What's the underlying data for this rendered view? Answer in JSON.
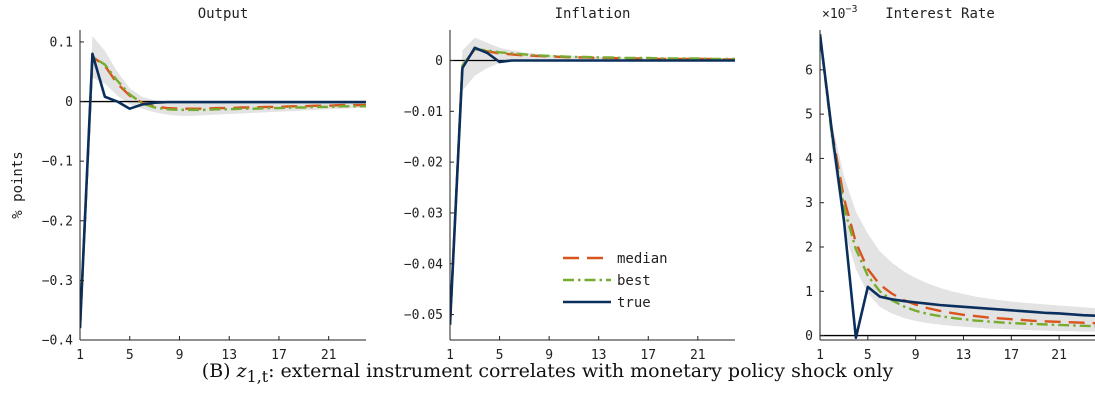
{
  "caption": {
    "label": "(B)",
    "var": "z",
    "sub": "1,t",
    "text": ": external instrument correlates with monetary policy shock only"
  },
  "colors": {
    "median": "#d9541e",
    "best": "#77ac30",
    "true": "#0b2f5c",
    "band": "#e3e3e3"
  },
  "chart_data": [
    {
      "type": "line",
      "title": "Output",
      "ylabel": "% points",
      "xlim": [
        1,
        24
      ],
      "ylim": [
        -0.4,
        0.12
      ],
      "xticks": [
        1,
        5,
        9,
        13,
        17,
        21
      ],
      "yticks": [
        0.1,
        0,
        -0.1,
        -0.2,
        -0.3,
        -0.4
      ],
      "yticklabels": [
        "0.1",
        "0",
        "−0.1",
        "−0.2",
        "−0.3",
        "−0.4"
      ],
      "x": [
        1,
        2,
        3,
        4,
        5,
        6,
        7,
        8,
        9,
        10,
        11,
        12,
        13,
        14,
        15,
        16,
        17,
        18,
        19,
        20,
        21,
        22,
        23,
        24
      ],
      "band": {
        "upper": [
          -0.38,
          0.11,
          0.085,
          0.05,
          0.022,
          0.008,
          0.002,
          0.0,
          -0.002,
          -0.002,
          -0.002,
          -0.002,
          -0.002,
          -0.002,
          -0.002,
          -0.002,
          -0.001,
          -0.001,
          -0.001,
          -0.001,
          -0.001,
          -0.001,
          -0.001,
          -0.001
        ],
        "lower": [
          -0.38,
          0.04,
          0.03,
          0.01,
          -0.005,
          -0.012,
          -0.018,
          -0.022,
          -0.024,
          -0.024,
          -0.023,
          -0.022,
          -0.021,
          -0.02,
          -0.019,
          -0.018,
          -0.017,
          -0.016,
          -0.015,
          -0.014,
          -0.013,
          -0.012,
          -0.011,
          -0.01
        ]
      },
      "series": [
        {
          "name": "median",
          "values": [
            -0.38,
            0.075,
            0.06,
            0.03,
            0.01,
            -0.002,
            -0.008,
            -0.011,
            -0.012,
            -0.012,
            -0.012,
            -0.011,
            -0.011,
            -0.01,
            -0.01,
            -0.009,
            -0.009,
            -0.008,
            -0.008,
            -0.007,
            -0.007,
            -0.006,
            -0.006,
            -0.006
          ]
        },
        {
          "name": "best",
          "values": [
            -0.38,
            0.075,
            0.062,
            0.035,
            0.012,
            -0.003,
            -0.01,
            -0.013,
            -0.014,
            -0.014,
            -0.014,
            -0.013,
            -0.013,
            -0.012,
            -0.012,
            -0.011,
            -0.011,
            -0.01,
            -0.01,
            -0.009,
            -0.009,
            -0.008,
            -0.008,
            -0.008
          ]
        },
        {
          "name": "true",
          "values": [
            -0.38,
            0.08,
            0.008,
            0.0,
            -0.012,
            -0.005,
            -0.002,
            -0.001,
            -0.001,
            -0.001,
            -0.001,
            -0.001,
            -0.001,
            -0.001,
            -0.001,
            -0.001,
            -0.001,
            -0.001,
            -0.001,
            -0.001,
            -0.001,
            -0.001,
            -0.001,
            -0.001
          ]
        }
      ]
    },
    {
      "type": "line",
      "title": "Inflation",
      "xlim": [
        1,
        24
      ],
      "ylim": [
        -0.055,
        0.006
      ],
      "xticks": [
        1,
        5,
        9,
        13,
        17,
        21
      ],
      "yticks": [
        0,
        -0.01,
        -0.02,
        -0.03,
        -0.04,
        -0.05
      ],
      "yticklabels": [
        "0",
        "−0.01",
        "−0.02",
        "−0.03",
        "−0.04",
        "−0.05"
      ],
      "legend": {
        "position": "bottom-right",
        "entries": [
          "median",
          "best",
          "true"
        ]
      },
      "x": [
        1,
        2,
        3,
        4,
        5,
        6,
        7,
        8,
        9,
        10,
        11,
        12,
        13,
        14,
        15,
        16,
        17,
        18,
        19,
        20,
        21,
        22,
        23,
        24
      ],
      "band": {
        "upper": [
          -0.052,
          0.002,
          0.0045,
          0.0035,
          0.0025,
          0.002,
          0.0016,
          0.0013,
          0.0011,
          0.001,
          0.0009,
          0.0008,
          0.0007,
          0.0006,
          0.0006,
          0.0005,
          0.0005,
          0.0004,
          0.0004,
          0.0004,
          0.0003,
          0.0003,
          0.0003,
          0.0003
        ],
        "lower": [
          -0.052,
          -0.006,
          -0.003,
          -0.0015,
          -0.0005,
          0.0,
          0.0,
          0.0,
          0.0,
          0.0,
          0.0,
          0.0,
          0.0,
          0.0,
          0.0,
          0.0,
          0.0,
          0.0,
          0.0,
          0.0,
          0.0,
          0.0,
          0.0,
          0.0
        ]
      },
      "series": [
        {
          "name": "median",
          "values": [
            -0.052,
            -0.001,
            0.0022,
            0.0018,
            0.0014,
            0.0012,
            0.001,
            0.0009,
            0.0008,
            0.0007,
            0.0006,
            0.0006,
            0.0005,
            0.0005,
            0.0004,
            0.0004,
            0.0004,
            0.0003,
            0.0003,
            0.0003,
            0.0003,
            0.0003,
            0.0002,
            0.0002
          ]
        },
        {
          "name": "best",
          "values": [
            -0.052,
            -0.001,
            0.0022,
            0.002,
            0.0016,
            0.0014,
            0.0012,
            0.001,
            0.0009,
            0.0008,
            0.0007,
            0.0007,
            0.0006,
            0.0006,
            0.0005,
            0.0005,
            0.0005,
            0.0004,
            0.0004,
            0.0004,
            0.0004,
            0.0003,
            0.0003,
            0.0003
          ]
        },
        {
          "name": "true",
          "values": [
            -0.052,
            -0.0015,
            0.0025,
            0.0015,
            -0.0003,
            0.0,
            0.0,
            0.0,
            0.0,
            0.0,
            0.0,
            0.0,
            0.0,
            0.0,
            0.0,
            0.0,
            0.0,
            0.0,
            0.0,
            0.0,
            0.0,
            0.0,
            0.0,
            0.0
          ]
        }
      ]
    },
    {
      "type": "line",
      "title": "Interest Rate",
      "scale_label": "×10",
      "scale_exp": "−3",
      "xlim": [
        1,
        24
      ],
      "ylim": [
        -0.1,
        6.9
      ],
      "xticks": [
        1,
        5,
        9,
        13,
        17,
        21
      ],
      "yticks": [
        0,
        1,
        2,
        3,
        4,
        5,
        6
      ],
      "yticklabels": [
        "0",
        "1",
        "2",
        "3",
        "4",
        "5",
        "6"
      ],
      "x": [
        1,
        2,
        3,
        4,
        5,
        6,
        7,
        8,
        9,
        10,
        11,
        12,
        13,
        14,
        15,
        16,
        17,
        18,
        19,
        20,
        21,
        22,
        23,
        24
      ],
      "band": {
        "upper": [
          6.8,
          4.8,
          3.6,
          2.8,
          2.3,
          1.9,
          1.65,
          1.45,
          1.3,
          1.18,
          1.08,
          1.0,
          0.94,
          0.88,
          0.84,
          0.8,
          0.77,
          0.74,
          0.72,
          0.7,
          0.68,
          0.66,
          0.64,
          0.62
        ],
        "lower": [
          6.8,
          4.2,
          2.4,
          1.5,
          0.95,
          0.65,
          0.5,
          0.4,
          0.33,
          0.28,
          0.25,
          0.22,
          0.2,
          0.18,
          0.16,
          0.15,
          0.14,
          0.13,
          0.12,
          0.11,
          0.1,
          0.1,
          0.09,
          0.09
        ]
      },
      "series": [
        {
          "name": "median",
          "values": [
            6.8,
            4.6,
            3.1,
            2.1,
            1.5,
            1.15,
            0.95,
            0.8,
            0.7,
            0.62,
            0.56,
            0.51,
            0.47,
            0.44,
            0.41,
            0.39,
            0.37,
            0.35,
            0.33,
            0.32,
            0.31,
            0.3,
            0.29,
            0.28
          ]
        },
        {
          "name": "best",
          "values": [
            6.8,
            4.5,
            2.9,
            1.95,
            1.35,
            1.0,
            0.8,
            0.66,
            0.56,
            0.49,
            0.44,
            0.4,
            0.37,
            0.34,
            0.32,
            0.3,
            0.28,
            0.27,
            0.26,
            0.25,
            0.24,
            0.23,
            0.22,
            0.21
          ]
        },
        {
          "name": "true",
          "values": [
            6.8,
            4.6,
            2.6,
            -0.05,
            1.1,
            0.88,
            0.82,
            0.78,
            0.75,
            0.72,
            0.69,
            0.67,
            0.65,
            0.63,
            0.61,
            0.59,
            0.57,
            0.55,
            0.53,
            0.51,
            0.5,
            0.48,
            0.46,
            0.45
          ]
        }
      ]
    }
  ]
}
